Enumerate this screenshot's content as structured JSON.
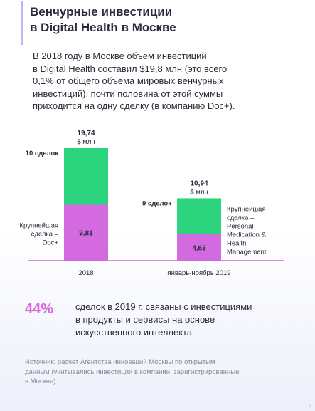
{
  "title": {
    "line1": "Венчурные инвестиции",
    "line2": "в Digital Health в Москве"
  },
  "intro": {
    "lines": [
      "В 2018 году в Москве объем инвестиций",
      "в Digital Health составил $19,8 млн (это всего",
      "0,1% от общего объема мировых венчурных",
      "инвестиций), почти половина от этой суммы",
      "приходится на одну сделку (в компанию Doc+)."
    ]
  },
  "chart_data": {
    "type": "bar",
    "stacked": true,
    "categories": [
      "2018",
      "январь-ноябрь 2019"
    ],
    "series": [
      {
        "name": "Крупнейшая сделка",
        "values": [
          9.81,
          4.63
        ],
        "value_labels": [
          "9,81",
          "4,63"
        ],
        "color": "#d46ae0"
      },
      {
        "name": "",
        "values": [
          9.93,
          6.31
        ],
        "color": "#2dd47e"
      }
    ],
    "totals": [
      19.74,
      10.94
    ],
    "total_labels": [
      "19,74",
      "10,94"
    ],
    "unit_label": "$ млн",
    "deal_counts": [
      "10 сделок",
      "9 сделок"
    ],
    "largest_deal_labels": [
      [
        "Крупнейшая",
        "сделка –",
        "Doc+"
      ],
      [
        "Крупнейшая",
        "сделка –",
        "Personal",
        "Medication &",
        "Health",
        "Management"
      ]
    ],
    "ylim": [
      0,
      19.74
    ],
    "axis_color": "#c76bd8"
  },
  "stat": {
    "value": "44%",
    "lines": [
      "сделок в 2019 г. связаны с инвестициями",
      "в продукты и сервисы на основе",
      "искусственного интеллекта"
    ]
  },
  "source": {
    "lines": [
      "Источник: расчет Агентства инноваций Москвы по открытым",
      "данным (учитывались инвестиции в компании, зарегистрированные",
      "в Москве)"
    ]
  },
  "colors": {
    "bottom_segment": "#d46ae0",
    "top_segment": "#2dd47e",
    "accent": "#d868dd"
  },
  "icons": {
    "corner": "chevron-right-icon"
  }
}
